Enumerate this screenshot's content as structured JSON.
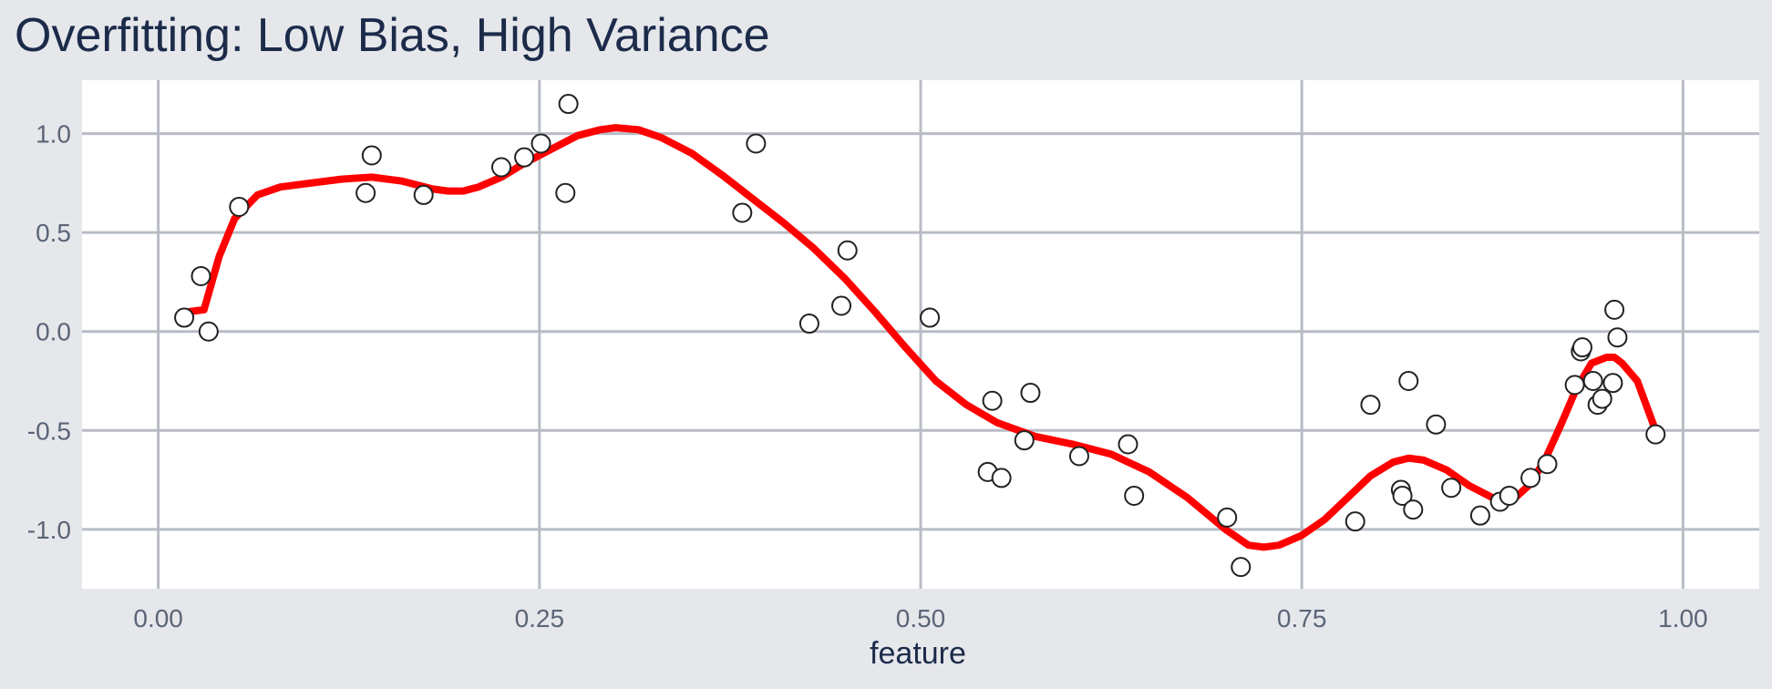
{
  "chart_data": {
    "type": "scatter",
    "title": "Overfitting: Low Bias, High Variance",
    "xlabel": "feature",
    "ylabel": "",
    "xlim": [
      -0.05,
      1.05
    ],
    "ylim": [
      -1.3,
      1.27
    ],
    "x_ticks": [
      {
        "value": 0.0,
        "label": "0.00"
      },
      {
        "value": 0.25,
        "label": "0.25"
      },
      {
        "value": 0.5,
        "label": "0.50"
      },
      {
        "value": 0.75,
        "label": "0.75"
      },
      {
        "value": 1.0,
        "label": "1.00"
      }
    ],
    "y_ticks": [
      {
        "value": 1.0,
        "label": "1.0"
      },
      {
        "value": 0.5,
        "label": "0.5"
      },
      {
        "value": 0.0,
        "label": "0.0"
      },
      {
        "value": -0.5,
        "label": "-0.5"
      },
      {
        "value": -1.0,
        "label": "-1.0"
      }
    ],
    "grid": true,
    "colors": {
      "background": "#e5e7eb",
      "panel": "#ffffff",
      "grid": "#b8bcc5",
      "curve": "#ff0000",
      "point_stroke": "#222222",
      "point_fill": "#ffffff"
    },
    "points": [
      {
        "x": 0.017,
        "y": 0.07
      },
      {
        "x": 0.028,
        "y": 0.28
      },
      {
        "x": 0.033,
        "y": 0.0
      },
      {
        "x": 0.053,
        "y": 0.63
      },
      {
        "x": 0.136,
        "y": 0.7
      },
      {
        "x": 0.14,
        "y": 0.89
      },
      {
        "x": 0.174,
        "y": 0.69
      },
      {
        "x": 0.225,
        "y": 0.83
      },
      {
        "x": 0.24,
        "y": 0.88
      },
      {
        "x": 0.251,
        "y": 0.95
      },
      {
        "x": 0.267,
        "y": 0.7
      },
      {
        "x": 0.269,
        "y": 1.15
      },
      {
        "x": 0.383,
        "y": 0.6
      },
      {
        "x": 0.392,
        "y": 0.95
      },
      {
        "x": 0.427,
        "y": 0.04
      },
      {
        "x": 0.448,
        "y": 0.13
      },
      {
        "x": 0.452,
        "y": 0.41
      },
      {
        "x": 0.506,
        "y": 0.07
      },
      {
        "x": 0.544,
        "y": -0.71
      },
      {
        "x": 0.547,
        "y": -0.35
      },
      {
        "x": 0.553,
        "y": -0.74
      },
      {
        "x": 0.568,
        "y": -0.55
      },
      {
        "x": 0.572,
        "y": -0.31
      },
      {
        "x": 0.604,
        "y": -0.63
      },
      {
        "x": 0.636,
        "y": -0.57
      },
      {
        "x": 0.64,
        "y": -0.83
      },
      {
        "x": 0.701,
        "y": -0.94
      },
      {
        "x": 0.71,
        "y": -1.19
      },
      {
        "x": 0.785,
        "y": -0.96
      },
      {
        "x": 0.795,
        "y": -0.37
      },
      {
        "x": 0.815,
        "y": -0.8
      },
      {
        "x": 0.816,
        "y": -0.83
      },
      {
        "x": 0.82,
        "y": -0.25
      },
      {
        "x": 0.823,
        "y": -0.9
      },
      {
        "x": 0.838,
        "y": -0.47
      },
      {
        "x": 0.848,
        "y": -0.79
      },
      {
        "x": 0.867,
        "y": -0.93
      },
      {
        "x": 0.88,
        "y": -0.86
      },
      {
        "x": 0.886,
        "y": -0.83
      },
      {
        "x": 0.9,
        "y": -0.74
      },
      {
        "x": 0.911,
        "y": -0.67
      },
      {
        "x": 0.929,
        "y": -0.27
      },
      {
        "x": 0.933,
        "y": -0.1
      },
      {
        "x": 0.934,
        "y": -0.08
      },
      {
        "x": 0.941,
        "y": -0.25
      },
      {
        "x": 0.944,
        "y": -0.37
      },
      {
        "x": 0.947,
        "y": -0.34
      },
      {
        "x": 0.954,
        "y": -0.26
      },
      {
        "x": 0.955,
        "y": 0.11
      },
      {
        "x": 0.957,
        "y": -0.03
      },
      {
        "x": 0.982,
        "y": -0.52
      }
    ],
    "curve": [
      {
        "x": 0.02,
        "y": 0.1
      },
      {
        "x": 0.03,
        "y": 0.11
      },
      {
        "x": 0.04,
        "y": 0.38
      },
      {
        "x": 0.05,
        "y": 0.57
      },
      {
        "x": 0.065,
        "y": 0.69
      },
      {
        "x": 0.08,
        "y": 0.73
      },
      {
        "x": 0.1,
        "y": 0.75
      },
      {
        "x": 0.12,
        "y": 0.77
      },
      {
        "x": 0.14,
        "y": 0.78
      },
      {
        "x": 0.16,
        "y": 0.76
      },
      {
        "x": 0.18,
        "y": 0.72
      },
      {
        "x": 0.19,
        "y": 0.71
      },
      {
        "x": 0.2,
        "y": 0.71
      },
      {
        "x": 0.21,
        "y": 0.73
      },
      {
        "x": 0.225,
        "y": 0.78
      },
      {
        "x": 0.24,
        "y": 0.85
      },
      {
        "x": 0.26,
        "y": 0.93
      },
      {
        "x": 0.275,
        "y": 0.99
      },
      {
        "x": 0.29,
        "y": 1.02
      },
      {
        "x": 0.3,
        "y": 1.03
      },
      {
        "x": 0.315,
        "y": 1.02
      },
      {
        "x": 0.33,
        "y": 0.98
      },
      {
        "x": 0.35,
        "y": 0.9
      },
      {
        "x": 0.37,
        "y": 0.79
      },
      {
        "x": 0.39,
        "y": 0.67
      },
      {
        "x": 0.41,
        "y": 0.55
      },
      {
        "x": 0.43,
        "y": 0.42
      },
      {
        "x": 0.45,
        "y": 0.27
      },
      {
        "x": 0.47,
        "y": 0.1
      },
      {
        "x": 0.49,
        "y": -0.08
      },
      {
        "x": 0.51,
        "y": -0.25
      },
      {
        "x": 0.53,
        "y": -0.37
      },
      {
        "x": 0.55,
        "y": -0.46
      },
      {
        "x": 0.575,
        "y": -0.53
      },
      {
        "x": 0.6,
        "y": -0.57
      },
      {
        "x": 0.625,
        "y": -0.62
      },
      {
        "x": 0.65,
        "y": -0.71
      },
      {
        "x": 0.675,
        "y": -0.84
      },
      {
        "x": 0.7,
        "y": -1.0
      },
      {
        "x": 0.715,
        "y": -1.08
      },
      {
        "x": 0.725,
        "y": -1.09
      },
      {
        "x": 0.735,
        "y": -1.08
      },
      {
        "x": 0.75,
        "y": -1.03
      },
      {
        "x": 0.765,
        "y": -0.95
      },
      {
        "x": 0.78,
        "y": -0.84
      },
      {
        "x": 0.795,
        "y": -0.73
      },
      {
        "x": 0.81,
        "y": -0.66
      },
      {
        "x": 0.82,
        "y": -0.64
      },
      {
        "x": 0.83,
        "y": -0.65
      },
      {
        "x": 0.845,
        "y": -0.7
      },
      {
        "x": 0.86,
        "y": -0.78
      },
      {
        "x": 0.875,
        "y": -0.84
      },
      {
        "x": 0.89,
        "y": -0.84
      },
      {
        "x": 0.9,
        "y": -0.77
      },
      {
        "x": 0.91,
        "y": -0.64
      },
      {
        "x": 0.92,
        "y": -0.47
      },
      {
        "x": 0.93,
        "y": -0.29
      },
      {
        "x": 0.94,
        "y": -0.16
      },
      {
        "x": 0.95,
        "y": -0.13
      },
      {
        "x": 0.955,
        "y": -0.13
      },
      {
        "x": 0.96,
        "y": -0.16
      },
      {
        "x": 0.97,
        "y": -0.25
      },
      {
        "x": 0.982,
        "y": -0.5
      }
    ]
  }
}
